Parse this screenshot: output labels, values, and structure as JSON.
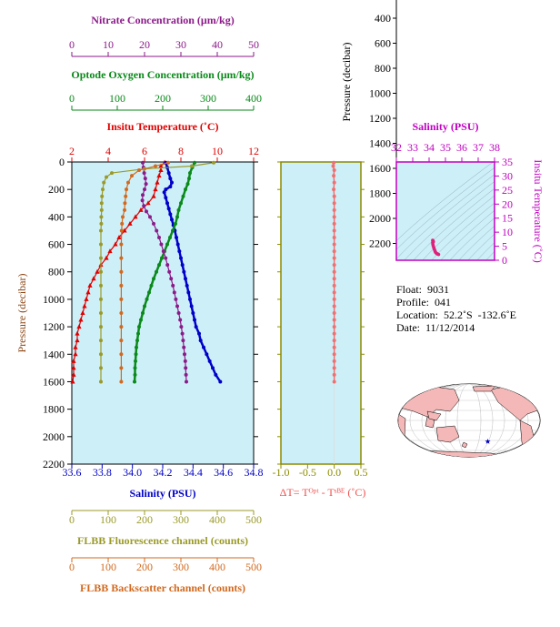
{
  "chart_data": [
    {
      "type": "line",
      "name": "main-profile",
      "ylabel": "Pressure (decibar)",
      "ylim": [
        0,
        2200
      ],
      "yticks": [
        0,
        200,
        400,
        600,
        800,
        1000,
        1200,
        1400,
        1600,
        1800,
        2000,
        2200
      ],
      "axes": [
        {
          "key": "nitrate",
          "label": "Nitrate Concentration (μm/kg)",
          "range": [
            0,
            50
          ],
          "ticks": [
            0,
            10,
            20,
            30,
            40,
            50
          ],
          "color": "#8B1A89"
        },
        {
          "key": "oxygen",
          "label": "Optode Oxygen Concentration (μm/kg)",
          "range": [
            0,
            400
          ],
          "ticks": [
            0,
            100,
            200,
            300,
            400
          ],
          "color": "#0A8A1A"
        },
        {
          "key": "temperature",
          "label": "Insitu Temperature (˚C)",
          "range": [
            2,
            12
          ],
          "ticks": [
            2,
            4,
            6,
            8,
            10,
            12
          ],
          "color": "#E00000"
        },
        {
          "key": "salinity",
          "label": "Salinity (PSU)",
          "range": [
            33.6,
            34.8
          ],
          "ticks": [
            "33.6",
            "33.8",
            "34.0",
            "34.2",
            "34.4",
            "34.6",
            "34.8"
          ],
          "color": "#0000C8"
        },
        {
          "key": "fluorescence",
          "label": "FLBB Fluorescence channel (counts)",
          "range": [
            0,
            500
          ],
          "ticks": [
            0,
            100,
            200,
            300,
            400,
            500
          ],
          "color": "#9A9A2A"
        },
        {
          "key": "backscatter",
          "label": "FLBB Backscatter channel (counts)",
          "range": [
            0,
            500
          ],
          "ticks": [
            0,
            100,
            200,
            300,
            400,
            500
          ],
          "color": "#D2691E"
        }
      ],
      "series": [
        {
          "axis": "temperature",
          "marker": "triangle",
          "points": [
            [
              7.1,
              5
            ],
            [
              6.9,
              30
            ],
            [
              6.9,
              60
            ],
            [
              6.8,
              100
            ],
            [
              6.7,
              150
            ],
            [
              6.6,
              200
            ],
            [
              6.5,
              250
            ],
            [
              6.2,
              300
            ],
            [
              5.8,
              350
            ],
            [
              5.5,
              400
            ],
            [
              5.2,
              450
            ],
            [
              4.9,
              500
            ],
            [
              4.6,
              550
            ],
            [
              4.4,
              600
            ],
            [
              4.1,
              650
            ],
            [
              3.9,
              700
            ],
            [
              3.6,
              750
            ],
            [
              3.4,
              800
            ],
            [
              3.2,
              850
            ],
            [
              3.0,
              900
            ],
            [
              2.9,
              950
            ],
            [
              2.8,
              1000
            ],
            [
              2.7,
              1050
            ],
            [
              2.6,
              1100
            ],
            [
              2.5,
              1150
            ],
            [
              2.4,
              1200
            ],
            [
              2.3,
              1250
            ],
            [
              2.3,
              1300
            ],
            [
              2.2,
              1350
            ],
            [
              2.2,
              1400
            ],
            [
              2.1,
              1450
            ],
            [
              2.1,
              1500
            ],
            [
              2.1,
              1550
            ],
            [
              2.05,
              1600
            ]
          ]
        },
        {
          "axis": "salinity",
          "marker": "dot",
          "points": [
            [
              34.22,
              5
            ],
            [
              34.23,
              40
            ],
            [
              34.24,
              80
            ],
            [
              34.25,
              120
            ],
            [
              34.26,
              150
            ],
            [
              34.25,
              180
            ],
            [
              34.22,
              200
            ],
            [
              34.21,
              220
            ],
            [
              34.22,
              260
            ],
            [
              34.23,
              300
            ],
            [
              34.24,
              340
            ],
            [
              34.25,
              380
            ],
            [
              34.26,
              420
            ],
            [
              34.27,
              460
            ],
            [
              34.28,
              500
            ],
            [
              34.29,
              550
            ],
            [
              34.3,
              600
            ],
            [
              34.31,
              650
            ],
            [
              34.32,
              700
            ],
            [
              34.33,
              750
            ],
            [
              34.34,
              800
            ],
            [
              34.35,
              850
            ],
            [
              34.36,
              900
            ],
            [
              34.37,
              950
            ],
            [
              34.38,
              1000
            ],
            [
              34.39,
              1050
            ],
            [
              34.4,
              1100
            ],
            [
              34.41,
              1150
            ],
            [
              34.42,
              1200
            ],
            [
              34.44,
              1250
            ],
            [
              34.45,
              1300
            ],
            [
              34.47,
              1350
            ],
            [
              34.49,
              1400
            ],
            [
              34.51,
              1450
            ],
            [
              34.53,
              1500
            ],
            [
              34.55,
              1550
            ],
            [
              34.58,
              1600
            ]
          ]
        },
        {
          "axis": "oxygen",
          "marker": "dot",
          "points": [
            [
              270,
              5
            ],
            [
              265,
              40
            ],
            [
              260,
              80
            ],
            [
              258,
              120
            ],
            [
              255,
              160
            ],
            [
              250,
              200
            ],
            [
              245,
              250
            ],
            [
              240,
              300
            ],
            [
              235,
              350
            ],
            [
              232,
              400
            ],
            [
              228,
              450
            ],
            [
              222,
              500
            ],
            [
              216,
              550
            ],
            [
              210,
              600
            ],
            [
              204,
              650
            ],
            [
              198,
              700
            ],
            [
              192,
              750
            ],
            [
              186,
              800
            ],
            [
              180,
              850
            ],
            [
              175,
              900
            ],
            [
              170,
              950
            ],
            [
              165,
              1000
            ],
            [
              160,
              1050
            ],
            [
              156,
              1100
            ],
            [
              152,
              1150
            ],
            [
              148,
              1200
            ],
            [
              146,
              1250
            ],
            [
              144,
              1300
            ],
            [
              142,
              1350
            ],
            [
              141,
              1400
            ],
            [
              140,
              1450
            ],
            [
              139,
              1500
            ],
            [
              139,
              1550
            ],
            [
              138,
              1600
            ]
          ]
        },
        {
          "axis": "nitrate",
          "marker": "dot",
          "points": [
            [
              19.5,
              5
            ],
            [
              19.7,
              40
            ],
            [
              19.9,
              80
            ],
            [
              20.2,
              120
            ],
            [
              20.4,
              160
            ],
            [
              20.0,
              200
            ],
            [
              19.5,
              240
            ],
            [
              19.4,
              280
            ],
            [
              19.8,
              320
            ],
            [
              20.5,
              360
            ],
            [
              21.5,
              400
            ],
            [
              22.5,
              450
            ],
            [
              23.3,
              500
            ],
            [
              24.0,
              550
            ],
            [
              24.6,
              600
            ],
            [
              25.2,
              650
            ],
            [
              25.8,
              700
            ],
            [
              26.3,
              750
            ],
            [
              26.8,
              800
            ],
            [
              27.3,
              850
            ],
            [
              27.8,
              900
            ],
            [
              28.2,
              950
            ],
            [
              28.6,
              1000
            ],
            [
              29.0,
              1050
            ],
            [
              29.4,
              1100
            ],
            [
              29.8,
              1150
            ],
            [
              30.1,
              1200
            ],
            [
              30.4,
              1250
            ],
            [
              30.6,
              1300
            ],
            [
              30.8,
              1350
            ],
            [
              31.0,
              1400
            ],
            [
              31.2,
              1450
            ],
            [
              31.3,
              1500
            ],
            [
              31.4,
              1550
            ],
            [
              31.5,
              1600
            ]
          ]
        },
        {
          "axis": "fluorescence",
          "marker": "dot",
          "points": [
            [
              390,
              5
            ],
            [
              330,
              30
            ],
            [
              200,
              50
            ],
            [
              110,
              80
            ],
            [
              95,
              110
            ],
            [
              88,
              150
            ],
            [
              85,
              200
            ],
            [
              83,
              250
            ],
            [
              82,
              300
            ],
            [
              82,
              350
            ],
            [
              81,
              400
            ],
            [
              81,
              450
            ],
            [
              80,
              500
            ],
            [
              80,
              600
            ],
            [
              80,
              700
            ],
            [
              80,
              800
            ],
            [
              80,
              900
            ],
            [
              80,
              1000
            ],
            [
              80,
              1100
            ],
            [
              80,
              1200
            ],
            [
              80,
              1300
            ],
            [
              80,
              1400
            ],
            [
              80,
              1500
            ],
            [
              80,
              1600
            ]
          ]
        },
        {
          "axis": "backscatter",
          "marker": "dot",
          "points": [
            [
              265,
              5
            ],
            [
              230,
              30
            ],
            [
              185,
              60
            ],
            [
              165,
              100
            ],
            [
              155,
              150
            ],
            [
              150,
              200
            ],
            [
              148,
              250
            ],
            [
              146,
              300
            ],
            [
              145,
              350
            ],
            [
              140,
              400
            ],
            [
              138,
              450
            ],
            [
              137,
              500
            ],
            [
              136,
              600
            ],
            [
              136,
              700
            ],
            [
              136,
              800
            ],
            [
              136,
              900
            ],
            [
              136,
              1000
            ],
            [
              136,
              1100
            ],
            [
              136,
              1200
            ],
            [
              136,
              1300
            ],
            [
              136,
              1400
            ],
            [
              136,
              1500
            ],
            [
              136,
              1600
            ]
          ]
        }
      ]
    },
    {
      "type": "line",
      "name": "delta-temperature",
      "xlabel": "ΔT= Tᴼᵖᵗ - Tˢᴮᴱ (˚C)",
      "xlim": [
        -1.0,
        0.5
      ],
      "xticks": [
        "-1.0",
        "-0.5",
        "0.0",
        "0.5"
      ],
      "ylim": [
        0,
        2200
      ],
      "color": "#F07070",
      "points": [
        [
          -0.01,
          5
        ],
        [
          -0.02,
          30
        ],
        [
          0.0,
          60
        ],
        [
          -0.01,
          100
        ],
        [
          0.0,
          150
        ],
        [
          -0.01,
          200
        ],
        [
          0.0,
          250
        ],
        [
          0.0,
          300
        ],
        [
          0.0,
          350
        ],
        [
          0.0,
          400
        ],
        [
          0.0,
          450
        ],
        [
          0.0,
          500
        ],
        [
          0.0,
          550
        ],
        [
          0.0,
          600
        ],
        [
          0.0,
          650
        ],
        [
          0.0,
          700
        ],
        [
          0.0,
          750
        ],
        [
          0.0,
          800
        ],
        [
          0.0,
          850
        ],
        [
          0.0,
          900
        ],
        [
          0.0,
          950
        ],
        [
          0.0,
          1000
        ],
        [
          0.0,
          1050
        ],
        [
          0.0,
          1100
        ],
        [
          0.0,
          1150
        ],
        [
          0.0,
          1200
        ],
        [
          0.0,
          1250
        ],
        [
          0.0,
          1300
        ],
        [
          0.0,
          1350
        ],
        [
          0.0,
          1400
        ],
        [
          0.0,
          1450
        ],
        [
          0.0,
          1500
        ],
        [
          0.0,
          1550
        ],
        [
          0.0,
          1600
        ]
      ]
    },
    {
      "type": "scatter",
      "name": "ts-diagram",
      "title": "Salinity (PSU)",
      "xlim": [
        32,
        38
      ],
      "xticks": [
        "32",
        "33",
        "34",
        "35",
        "36",
        "37",
        "38"
      ],
      "ylabel": "Insitu Temperature (˚C)",
      "ylim": [
        0,
        35
      ],
      "yticks": [
        "0",
        "5",
        "10",
        "15",
        "20",
        "25",
        "30",
        "35"
      ],
      "color": "#E0207A",
      "points": [
        [
          34.22,
          7.1
        ],
        [
          34.23,
          6.9
        ],
        [
          34.25,
          6.8
        ],
        [
          34.26,
          6.6
        ],
        [
          34.22,
          6.3
        ],
        [
          34.23,
          5.8
        ],
        [
          34.25,
          5.2
        ],
        [
          34.28,
          4.6
        ],
        [
          34.3,
          4.2
        ],
        [
          34.33,
          3.8
        ],
        [
          34.36,
          3.3
        ],
        [
          34.38,
          3.0
        ],
        [
          34.41,
          2.7
        ],
        [
          34.45,
          2.5
        ],
        [
          34.49,
          2.3
        ],
        [
          34.53,
          2.2
        ],
        [
          34.58,
          2.05
        ]
      ]
    },
    {
      "type": "line",
      "name": "pressure-axis-partial",
      "ylabel": "Pressure (decibar)",
      "yticks": [
        "400",
        "600",
        "800",
        "1000",
        "1200",
        "1400",
        "1600",
        "1800",
        "2000",
        "2200"
      ]
    }
  ],
  "info": {
    "float": "Float:  9031",
    "profile": "Profile:  041",
    "location": "Location:  52.2˚S  -132.6˚E",
    "date": "Date:  11/12/2014"
  },
  "map": {
    "marker_color": "#0000C8"
  },
  "colors": {
    "panel_bg": "#CDEFF8",
    "delta_frame": "#8B8B00",
    "ts_frame": "#C000C0"
  }
}
